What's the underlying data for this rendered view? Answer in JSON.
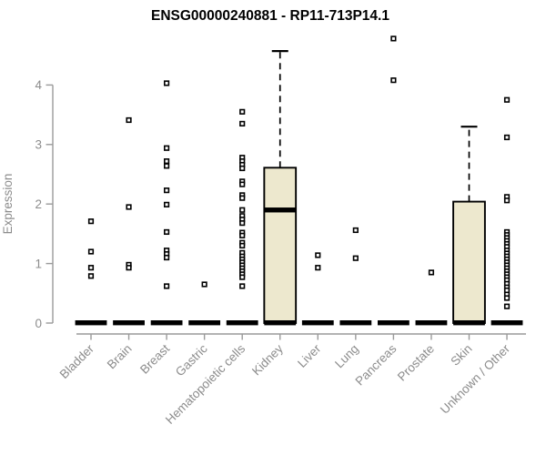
{
  "chart_data": {
    "type": "boxplot",
    "title": "ENSG00000240881 - RP11-713P14.1",
    "ylabel": "Expression",
    "xlabel": "",
    "ylim": [
      0,
      4.9
    ],
    "yticks": [
      0,
      1,
      2,
      3,
      4
    ],
    "grid": false,
    "legend": null,
    "colors": {
      "box_fill": "#EDE8CE",
      "box_stroke": "#000000",
      "point": "#000000",
      "axis": "#9a9a9a",
      "tick_text": "#8c8c8c",
      "title_text": "#000000"
    },
    "categories": [
      "Bladder",
      "Brain",
      "Breast",
      "Gastric",
      "Hematopoietic cells",
      "Kidney",
      "Liver",
      "Lung",
      "Pancreas",
      "Prostate",
      "Skin",
      "Unknown / Other"
    ],
    "groups": [
      {
        "name": "Bladder",
        "q1": 0,
        "median": 0,
        "q3": 0,
        "points": [
          1.71,
          1.2,
          0.93,
          0.79
        ]
      },
      {
        "name": "Brain",
        "q1": 0,
        "median": 0,
        "q3": 0,
        "points": [
          3.41,
          1.95,
          0.98,
          0.93
        ]
      },
      {
        "name": "Breast",
        "q1": 0,
        "median": 0,
        "q3": 0,
        "points": [
          4.03,
          2.94,
          2.72,
          2.64,
          2.23,
          1.99,
          1.53,
          1.22,
          1.16,
          1.1,
          0.62
        ]
      },
      {
        "name": "Gastric",
        "q1": 0,
        "median": 0,
        "q3": 0,
        "points": [
          0.65
        ]
      },
      {
        "name": "Hematopoietic cells",
        "q1": 0,
        "median": 0,
        "q3": 0,
        "points": [
          3.55,
          3.35,
          2.78,
          2.72,
          2.66,
          2.6,
          2.38,
          2.33,
          2.15,
          2.1,
          1.9,
          1.8,
          1.74,
          1.68,
          1.52,
          1.47,
          1.35,
          1.3,
          1.18,
          1.12,
          1.07,
          1.02,
          0.97,
          0.92,
          0.87,
          0.82,
          0.77,
          0.62
        ]
      },
      {
        "name": "Kidney",
        "q1": 0,
        "median": 1.9,
        "q3": 2.61,
        "whisker_high": 4.57,
        "points": []
      },
      {
        "name": "Liver",
        "q1": 0,
        "median": 0,
        "q3": 0,
        "points": [
          1.14,
          0.93
        ]
      },
      {
        "name": "Lung",
        "q1": 0,
        "median": 0,
        "q3": 0,
        "points": [
          1.56,
          1.09
        ]
      },
      {
        "name": "Pancreas",
        "q1": 0,
        "median": 0,
        "q3": 0,
        "points": [
          4.78,
          4.08
        ]
      },
      {
        "name": "Prostate",
        "q1": 0,
        "median": 0,
        "q3": 0,
        "points": [
          0.85
        ]
      },
      {
        "name": "Skin",
        "q1": 0,
        "median": 0,
        "q3": 2.04,
        "whisker_high": 3.3,
        "points": []
      },
      {
        "name": "Unknown / Other",
        "q1": 0,
        "median": 0,
        "q3": 0,
        "points": [
          3.75,
          3.12,
          2.12,
          2.06,
          1.53,
          1.48,
          1.43,
          1.38,
          1.33,
          1.28,
          1.22,
          1.17,
          1.12,
          1.07,
          1.02,
          0.97,
          0.92,
          0.87,
          0.82,
          0.77,
          0.72,
          0.66,
          0.6,
          0.55,
          0.48,
          0.42,
          0.28
        ]
      }
    ]
  }
}
